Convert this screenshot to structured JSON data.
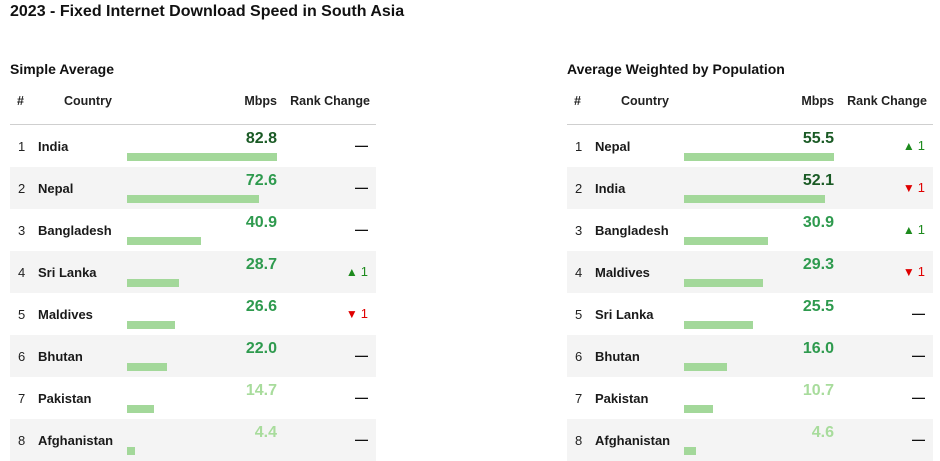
{
  "title": "2023 - Fixed Internet Download Speed in South Asia",
  "columns": {
    "rank": "#",
    "country": "Country",
    "mbps": "Mbps",
    "change": "Rank Change"
  },
  "colors": {
    "bar": "#a3d89a",
    "value_top": "#1a5a25",
    "value_mid": "#2e9a4e",
    "value_low": "#a8dc9c",
    "up": "#1d8a1d",
    "down": "#e00000"
  },
  "icons": {
    "up": "▲",
    "down": "▼",
    "same": "—"
  },
  "chart_data": [
    {
      "type": "table",
      "title": "Simple Average",
      "unit": "Mbps",
      "bar_max": 82.8,
      "rows": [
        {
          "rank": "1",
          "country": "India",
          "value": "82.8",
          "change": {
            "dir": "same",
            "n": ""
          }
        },
        {
          "rank": "2",
          "country": "Nepal",
          "value": "72.6",
          "change": {
            "dir": "same",
            "n": ""
          }
        },
        {
          "rank": "3",
          "country": "Bangladesh",
          "value": "40.9",
          "change": {
            "dir": "same",
            "n": ""
          }
        },
        {
          "rank": "4",
          "country": "Sri Lanka",
          "value": "28.7",
          "change": {
            "dir": "up",
            "n": "1"
          }
        },
        {
          "rank": "5",
          "country": "Maldives",
          "value": "26.6",
          "change": {
            "dir": "down",
            "n": "1"
          }
        },
        {
          "rank": "6",
          "country": "Bhutan",
          "value": "22.0",
          "change": {
            "dir": "same",
            "n": ""
          }
        },
        {
          "rank": "7",
          "country": "Pakistan",
          "value": "14.7",
          "change": {
            "dir": "same",
            "n": ""
          }
        },
        {
          "rank": "8",
          "country": "Afghanistan",
          "value": "4.4",
          "change": {
            "dir": "same",
            "n": ""
          }
        }
      ]
    },
    {
      "type": "table",
      "title": "Average Weighted by Population",
      "unit": "Mbps",
      "bar_max": 55.5,
      "rows": [
        {
          "rank": "1",
          "country": "Nepal",
          "value": "55.5",
          "change": {
            "dir": "up",
            "n": "1"
          }
        },
        {
          "rank": "2",
          "country": "India",
          "value": "52.1",
          "change": {
            "dir": "down",
            "n": "1"
          }
        },
        {
          "rank": "3",
          "country": "Bangladesh",
          "value": "30.9",
          "change": {
            "dir": "up",
            "n": "1"
          }
        },
        {
          "rank": "4",
          "country": "Maldives",
          "value": "29.3",
          "change": {
            "dir": "down",
            "n": "1"
          }
        },
        {
          "rank": "5",
          "country": "Sri Lanka",
          "value": "25.5",
          "change": {
            "dir": "same",
            "n": ""
          }
        },
        {
          "rank": "6",
          "country": "Bhutan",
          "value": "16.0",
          "change": {
            "dir": "same",
            "n": ""
          }
        },
        {
          "rank": "7",
          "country": "Pakistan",
          "value": "10.7",
          "change": {
            "dir": "same",
            "n": ""
          }
        },
        {
          "rank": "8",
          "country": "Afghanistan",
          "value": "4.6",
          "change": {
            "dir": "same",
            "n": ""
          }
        }
      ]
    }
  ]
}
